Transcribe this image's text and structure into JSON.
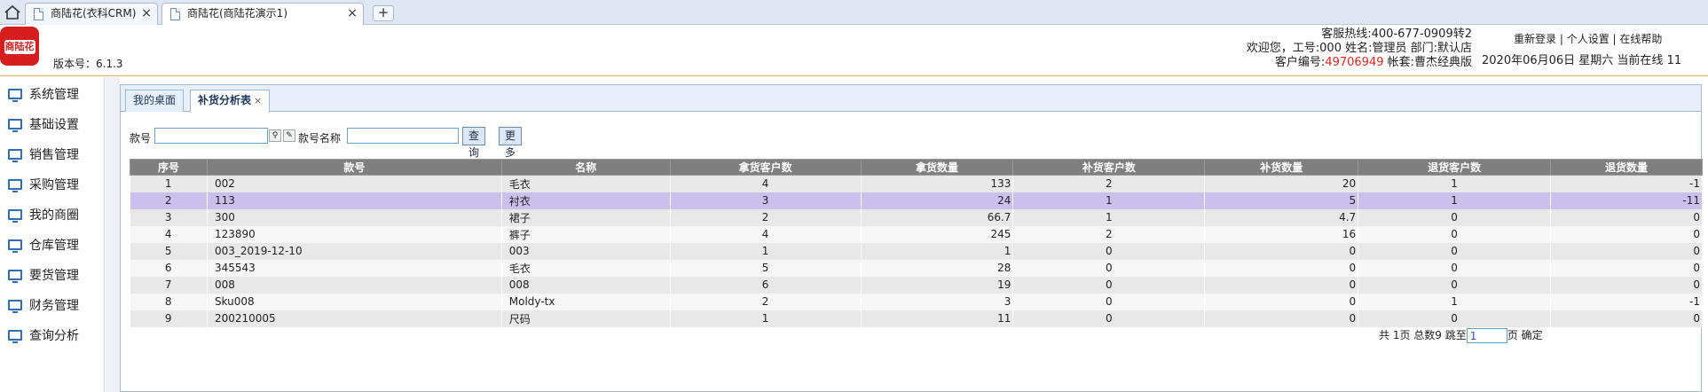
{
  "browser": {
    "tabs": [
      {
        "label": "商陆花(衣科CRM)"
      },
      {
        "label": "商陆花(商陆花演示1)"
      }
    ],
    "new_tab": "+"
  },
  "header": {
    "logo_text": "商陆花",
    "version": "版本号：6.1.3",
    "hotline": "客服热线:400-677-0909转2",
    "welcome": "欢迎您，工号:000 姓名:管理员 部门:默认店",
    "customer_label": "客户编号:",
    "customer_id": "49706949",
    "account": " 帐套:曹杰经典版",
    "links": [
      "重新登录",
      "个人设置",
      "在线帮助"
    ],
    "date_line": "2020年06月06日 星期六 当前在线 11"
  },
  "sidebar": {
    "items": [
      {
        "label": "系统管理"
      },
      {
        "label": "基础设置"
      },
      {
        "label": "销售管理"
      },
      {
        "label": "采购管理"
      },
      {
        "label": "我的商圈"
      },
      {
        "label": "仓库管理"
      },
      {
        "label": "要货管理"
      },
      {
        "label": "财务管理"
      },
      {
        "label": "查询分析"
      }
    ]
  },
  "content": {
    "tabs": [
      {
        "label": "我的桌面"
      },
      {
        "label": "补货分析表",
        "close": "×"
      }
    ],
    "search": {
      "sku_label": "款号",
      "sku_value": "",
      "name_label": "款号名称",
      "name_value": "",
      "query_btn": "查 询",
      "more_btn": "更多"
    },
    "table": {
      "headers": [
        "序号",
        "款号",
        "名称",
        "拿货客户数",
        "拿货数量",
        "补货客户数",
        "补货数量",
        "退货客户数",
        "退货数量"
      ],
      "rows": [
        [
          "1",
          "002",
          "毛衣",
          "4",
          "133",
          "2",
          "20",
          "1",
          "-1"
        ],
        [
          "2",
          "113",
          "衬衣",
          "3",
          "24",
          "1",
          "5",
          "1",
          "-11"
        ],
        [
          "3",
          "300",
          "裙子",
          "2",
          "66.7",
          "1",
          "4.7",
          "0",
          "0"
        ],
        [
          "4",
          "123890",
          "裤子",
          "4",
          "245",
          "2",
          "16",
          "0",
          "0"
        ],
        [
          "5",
          "003_2019-12-10",
          "003",
          "1",
          "1",
          "0",
          "0",
          "0",
          "0"
        ],
        [
          "6",
          "345543",
          "毛衣",
          "5",
          "28",
          "0",
          "0",
          "0",
          "0"
        ],
        [
          "7",
          "008",
          "008",
          "6",
          "19",
          "0",
          "0",
          "0",
          "0"
        ],
        [
          "8",
          "Sku008",
          "Moldy-tx",
          "2",
          "3",
          "0",
          "0",
          "1",
          "-1"
        ],
        [
          "9",
          "200210005",
          "尺码",
          "1",
          "11",
          "0",
          "0",
          "0",
          "0"
        ]
      ],
      "selected_row": 1
    },
    "pager": {
      "summary": "共 1页 总数9 跳至",
      "page_value": "1",
      "page_suffix": "页",
      "confirm": "确定"
    }
  },
  "colors": {
    "header_rule": "#e9a85a",
    "customer_id": "#e0261c",
    "selected_row": "#cbbfed",
    "table_header": "#7f7f7f"
  }
}
